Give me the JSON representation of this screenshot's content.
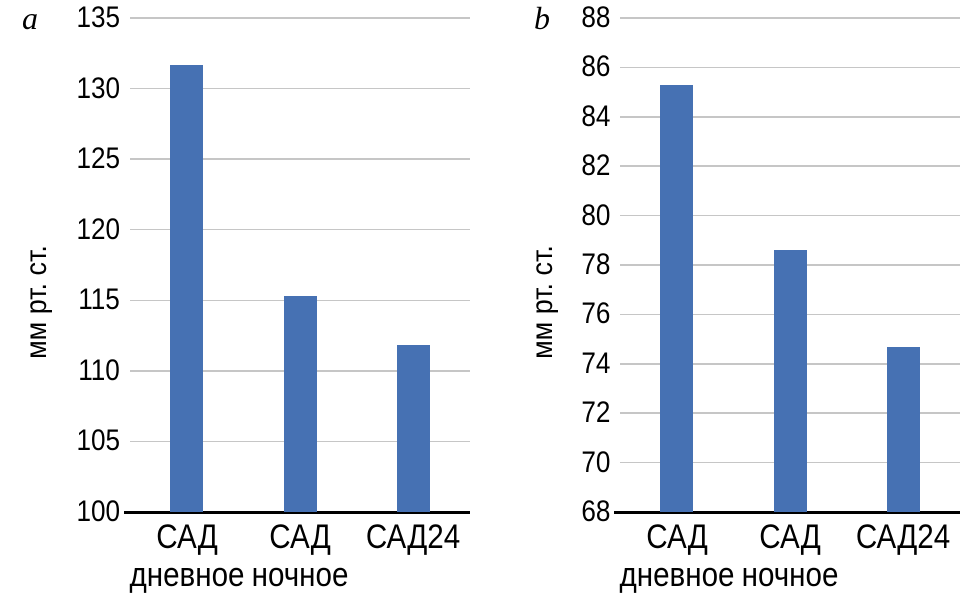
{
  "colors": {
    "bar": "#4671b3",
    "gridline": "#c6c6c6",
    "axis": "#000000",
    "text": "#000000",
    "background": "#ffffff"
  },
  "chart_data": [
    {
      "type": "bar",
      "panel_label": "a",
      "ylabel": "мм рт. ст.",
      "xlabel": "",
      "categories": [
        "САД дневное",
        "САД ночное",
        "САД24"
      ],
      "category_lines": [
        [
          "САД",
          "дневное"
        ],
        [
          "САД",
          "ночное"
        ],
        [
          "САД24"
        ]
      ],
      "values": [
        131.7,
        115.3,
        111.8
      ],
      "ylim": [
        100,
        135
      ],
      "yticks": [
        135,
        130,
        125,
        120,
        115,
        110,
        105,
        100
      ],
      "grid": true,
      "legend": "none"
    },
    {
      "type": "bar",
      "panel_label": "b",
      "ylabel": "мм рт. ст.",
      "xlabel": "",
      "categories": [
        "САД дневное",
        "САД ночное",
        "САД24"
      ],
      "category_lines": [
        [
          "САД",
          "дневное"
        ],
        [
          "САД",
          "ночное"
        ],
        [
          "САД24"
        ]
      ],
      "values": [
        85.3,
        78.6,
        74.7
      ],
      "ylim": [
        68,
        88
      ],
      "yticks": [
        88,
        86,
        84,
        82,
        80,
        78,
        76,
        74,
        72,
        70,
        68
      ],
      "grid": true,
      "legend": "none"
    }
  ]
}
